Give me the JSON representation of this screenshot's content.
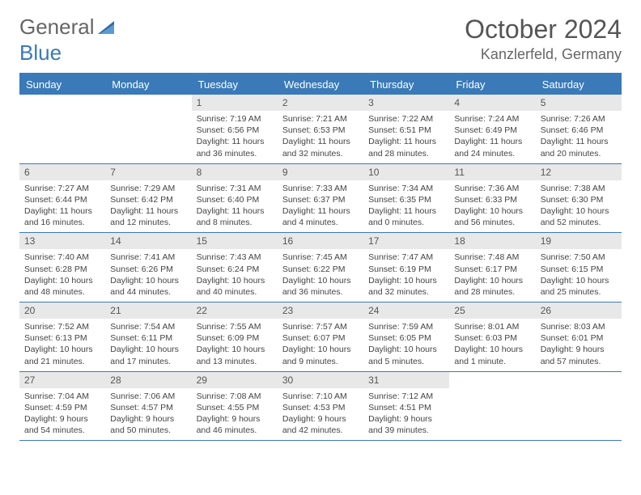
{
  "logo": {
    "text1": "General",
    "text2": "Blue"
  },
  "title": "October 2024",
  "location": "Kanzlerfeld, Germany",
  "colors": {
    "header_bg": "#3a7ab8",
    "header_text": "#ffffff",
    "daynum_bg": "#e8e8e8",
    "border": "#3a7ab8",
    "body_text": "#444444",
    "background": "#ffffff"
  },
  "font": {
    "family": "Arial",
    "title_size": 32,
    "location_size": 18,
    "header_size": 13,
    "cell_size": 10.5
  },
  "day_headers": [
    "Sunday",
    "Monday",
    "Tuesday",
    "Wednesday",
    "Thursday",
    "Friday",
    "Saturday"
  ],
  "weeks": [
    [
      null,
      null,
      {
        "n": "1",
        "sr": "Sunrise: 7:19 AM",
        "ss": "Sunset: 6:56 PM",
        "dl": "Daylight: 11 hours and 36 minutes."
      },
      {
        "n": "2",
        "sr": "Sunrise: 7:21 AM",
        "ss": "Sunset: 6:53 PM",
        "dl": "Daylight: 11 hours and 32 minutes."
      },
      {
        "n": "3",
        "sr": "Sunrise: 7:22 AM",
        "ss": "Sunset: 6:51 PM",
        "dl": "Daylight: 11 hours and 28 minutes."
      },
      {
        "n": "4",
        "sr": "Sunrise: 7:24 AM",
        "ss": "Sunset: 6:49 PM",
        "dl": "Daylight: 11 hours and 24 minutes."
      },
      {
        "n": "5",
        "sr": "Sunrise: 7:26 AM",
        "ss": "Sunset: 6:46 PM",
        "dl": "Daylight: 11 hours and 20 minutes."
      }
    ],
    [
      {
        "n": "6",
        "sr": "Sunrise: 7:27 AM",
        "ss": "Sunset: 6:44 PM",
        "dl": "Daylight: 11 hours and 16 minutes."
      },
      {
        "n": "7",
        "sr": "Sunrise: 7:29 AM",
        "ss": "Sunset: 6:42 PM",
        "dl": "Daylight: 11 hours and 12 minutes."
      },
      {
        "n": "8",
        "sr": "Sunrise: 7:31 AM",
        "ss": "Sunset: 6:40 PM",
        "dl": "Daylight: 11 hours and 8 minutes."
      },
      {
        "n": "9",
        "sr": "Sunrise: 7:33 AM",
        "ss": "Sunset: 6:37 PM",
        "dl": "Daylight: 11 hours and 4 minutes."
      },
      {
        "n": "10",
        "sr": "Sunrise: 7:34 AM",
        "ss": "Sunset: 6:35 PM",
        "dl": "Daylight: 11 hours and 0 minutes."
      },
      {
        "n": "11",
        "sr": "Sunrise: 7:36 AM",
        "ss": "Sunset: 6:33 PM",
        "dl": "Daylight: 10 hours and 56 minutes."
      },
      {
        "n": "12",
        "sr": "Sunrise: 7:38 AM",
        "ss": "Sunset: 6:30 PM",
        "dl": "Daylight: 10 hours and 52 minutes."
      }
    ],
    [
      {
        "n": "13",
        "sr": "Sunrise: 7:40 AM",
        "ss": "Sunset: 6:28 PM",
        "dl": "Daylight: 10 hours and 48 minutes."
      },
      {
        "n": "14",
        "sr": "Sunrise: 7:41 AM",
        "ss": "Sunset: 6:26 PM",
        "dl": "Daylight: 10 hours and 44 minutes."
      },
      {
        "n": "15",
        "sr": "Sunrise: 7:43 AM",
        "ss": "Sunset: 6:24 PM",
        "dl": "Daylight: 10 hours and 40 minutes."
      },
      {
        "n": "16",
        "sr": "Sunrise: 7:45 AM",
        "ss": "Sunset: 6:22 PM",
        "dl": "Daylight: 10 hours and 36 minutes."
      },
      {
        "n": "17",
        "sr": "Sunrise: 7:47 AM",
        "ss": "Sunset: 6:19 PM",
        "dl": "Daylight: 10 hours and 32 minutes."
      },
      {
        "n": "18",
        "sr": "Sunrise: 7:48 AM",
        "ss": "Sunset: 6:17 PM",
        "dl": "Daylight: 10 hours and 28 minutes."
      },
      {
        "n": "19",
        "sr": "Sunrise: 7:50 AM",
        "ss": "Sunset: 6:15 PM",
        "dl": "Daylight: 10 hours and 25 minutes."
      }
    ],
    [
      {
        "n": "20",
        "sr": "Sunrise: 7:52 AM",
        "ss": "Sunset: 6:13 PM",
        "dl": "Daylight: 10 hours and 21 minutes."
      },
      {
        "n": "21",
        "sr": "Sunrise: 7:54 AM",
        "ss": "Sunset: 6:11 PM",
        "dl": "Daylight: 10 hours and 17 minutes."
      },
      {
        "n": "22",
        "sr": "Sunrise: 7:55 AM",
        "ss": "Sunset: 6:09 PM",
        "dl": "Daylight: 10 hours and 13 minutes."
      },
      {
        "n": "23",
        "sr": "Sunrise: 7:57 AM",
        "ss": "Sunset: 6:07 PM",
        "dl": "Daylight: 10 hours and 9 minutes."
      },
      {
        "n": "24",
        "sr": "Sunrise: 7:59 AM",
        "ss": "Sunset: 6:05 PM",
        "dl": "Daylight: 10 hours and 5 minutes."
      },
      {
        "n": "25",
        "sr": "Sunrise: 8:01 AM",
        "ss": "Sunset: 6:03 PM",
        "dl": "Daylight: 10 hours and 1 minute."
      },
      {
        "n": "26",
        "sr": "Sunrise: 8:03 AM",
        "ss": "Sunset: 6:01 PM",
        "dl": "Daylight: 9 hours and 57 minutes."
      }
    ],
    [
      {
        "n": "27",
        "sr": "Sunrise: 7:04 AM",
        "ss": "Sunset: 4:59 PM",
        "dl": "Daylight: 9 hours and 54 minutes."
      },
      {
        "n": "28",
        "sr": "Sunrise: 7:06 AM",
        "ss": "Sunset: 4:57 PM",
        "dl": "Daylight: 9 hours and 50 minutes."
      },
      {
        "n": "29",
        "sr": "Sunrise: 7:08 AM",
        "ss": "Sunset: 4:55 PM",
        "dl": "Daylight: 9 hours and 46 minutes."
      },
      {
        "n": "30",
        "sr": "Sunrise: 7:10 AM",
        "ss": "Sunset: 4:53 PM",
        "dl": "Daylight: 9 hours and 42 minutes."
      },
      {
        "n": "31",
        "sr": "Sunrise: 7:12 AM",
        "ss": "Sunset: 4:51 PM",
        "dl": "Daylight: 9 hours and 39 minutes."
      },
      null,
      null
    ]
  ]
}
